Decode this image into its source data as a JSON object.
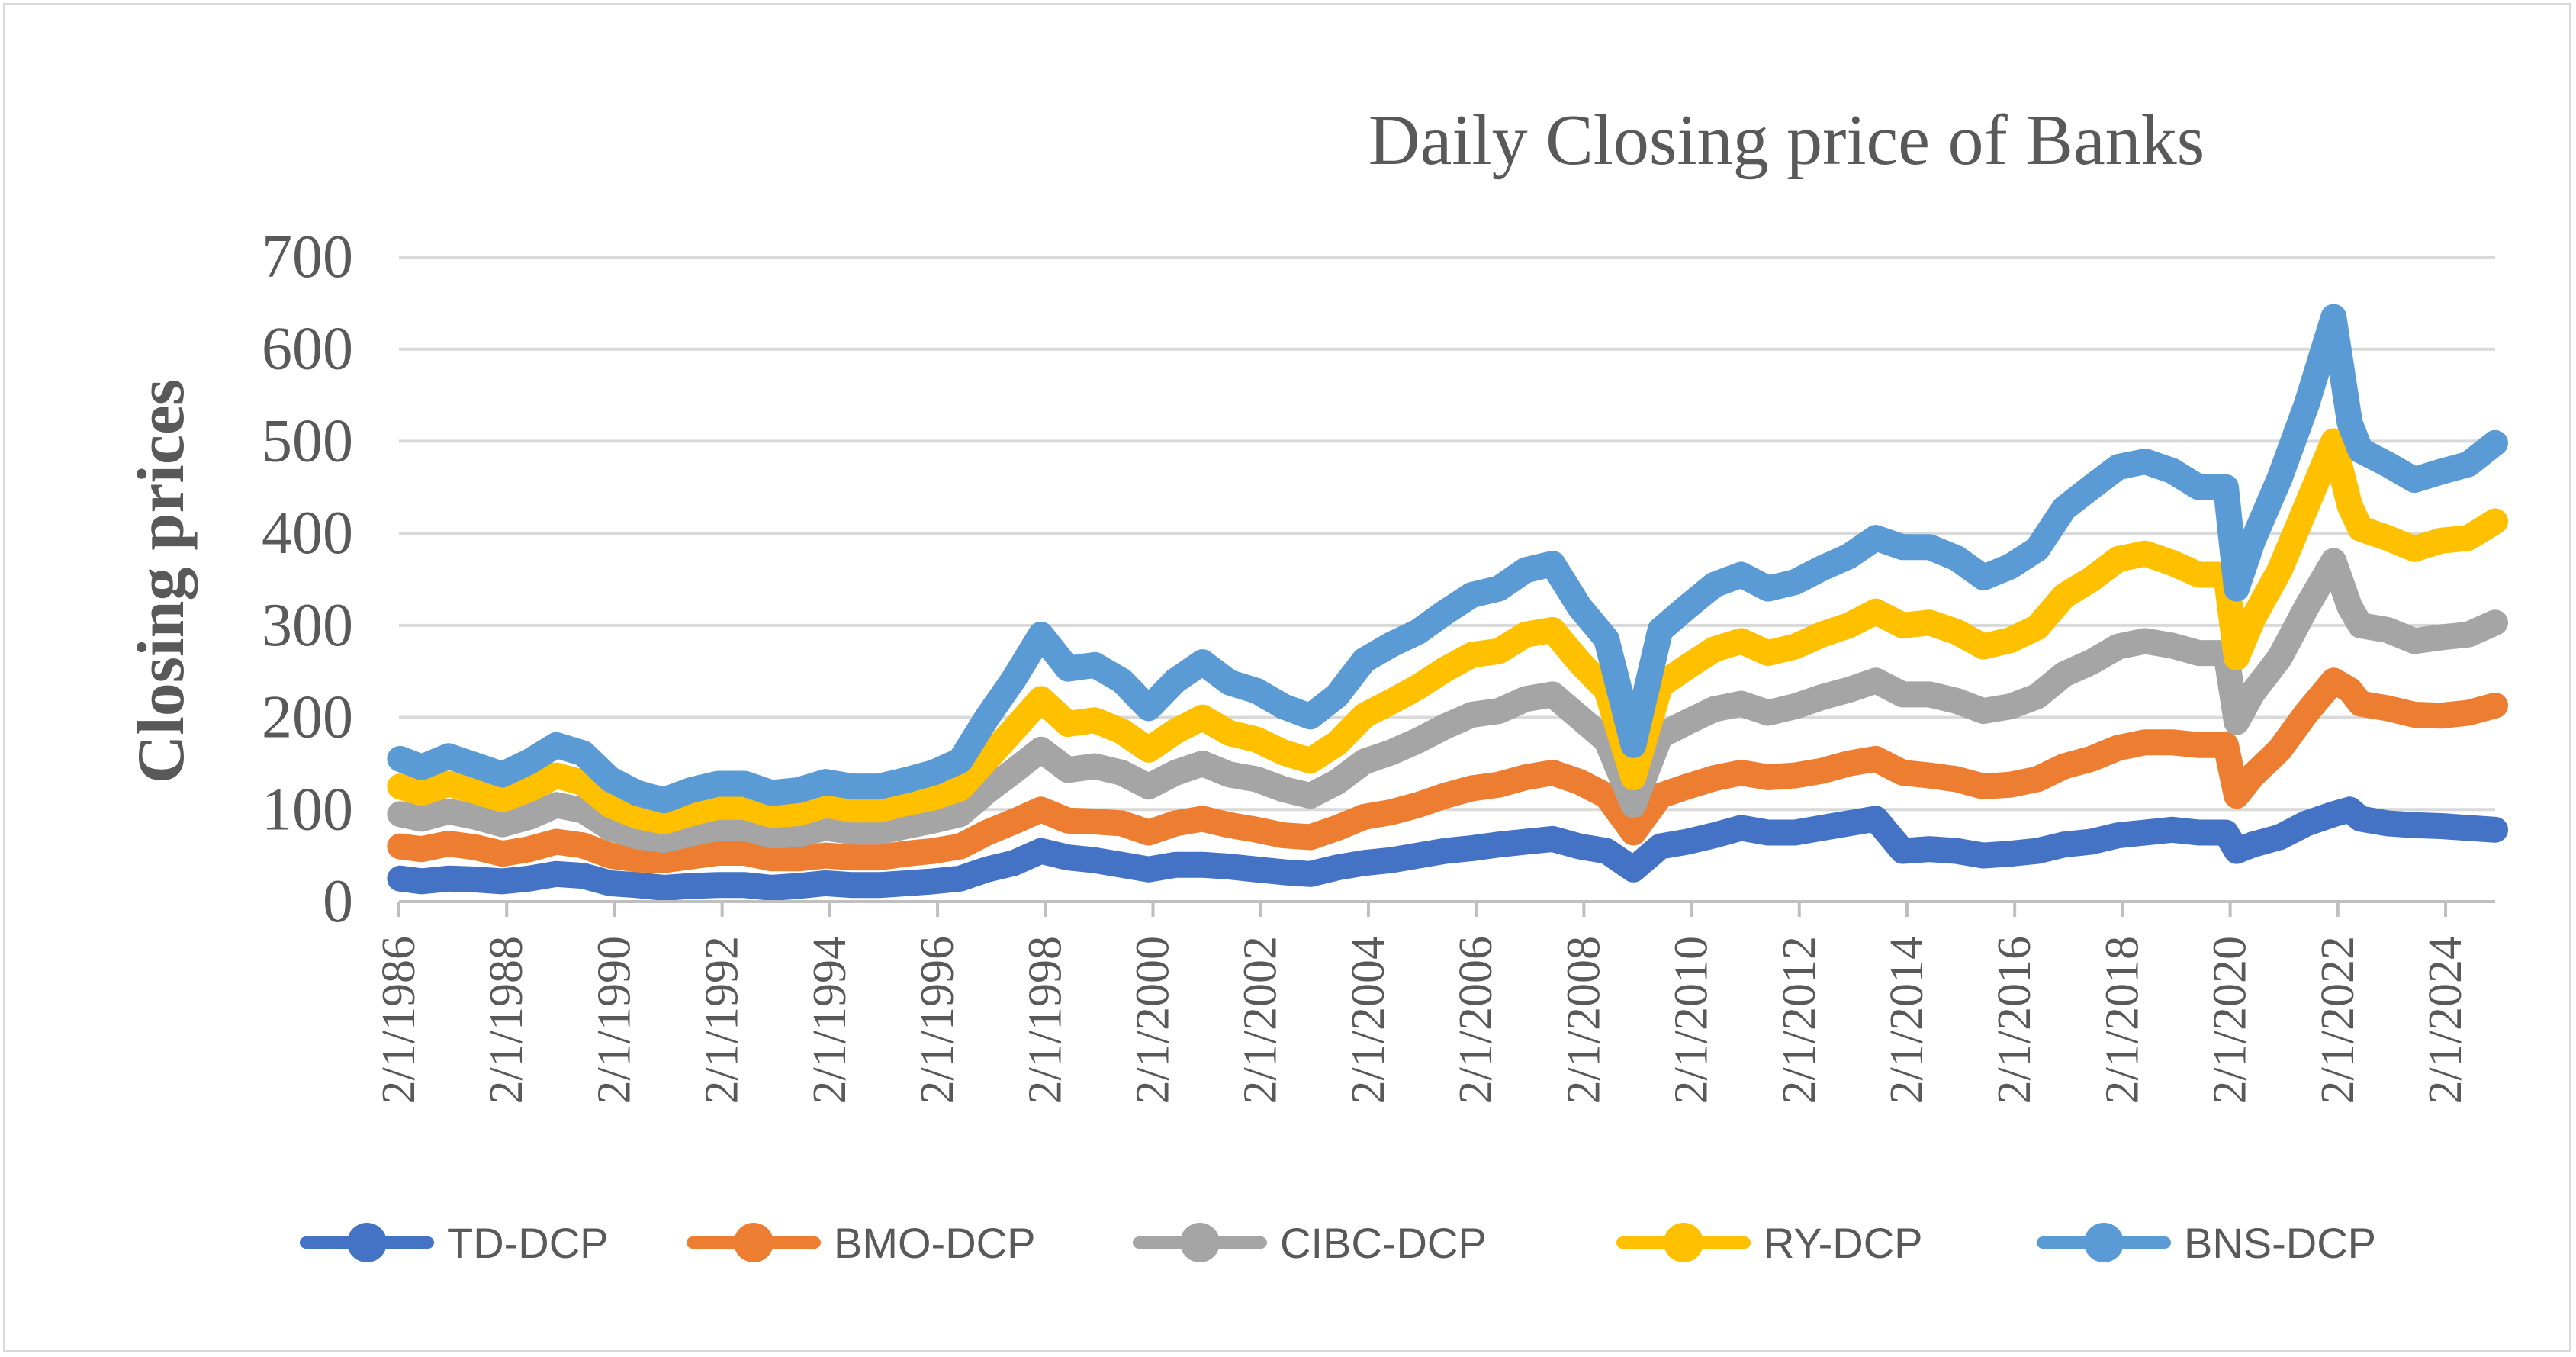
{
  "chart_data": {
    "type": "line",
    "title": "Daily Closing price of Banks",
    "xlabel": "",
    "ylabel": "Closing prices",
    "ylim": [
      0,
      700
    ],
    "xlim": [
      1986.08,
      2025.0
    ],
    "yticks": [
      0,
      100,
      200,
      300,
      400,
      500,
      600,
      700
    ],
    "y_tick_labels": [
      "0",
      "100",
      "200",
      "300",
      "400",
      "500",
      "600",
      "700"
    ],
    "xticks": [
      1986,
      1988,
      1990,
      1992,
      1994,
      1996,
      1998,
      2000,
      2002,
      2004,
      2006,
      2008,
      2010,
      2012,
      2014,
      2016,
      2018,
      2020,
      2022,
      2024
    ],
    "x_tick_labels": [
      "2/1/1986",
      "2/1/1988",
      "2/1/1990",
      "2/1/1992",
      "2/1/1994",
      "2/1/1996",
      "2/1/1998",
      "2/1/2000",
      "2/1/2002",
      "2/1/2004",
      "2/1/2006",
      "2/1/2008",
      "2/1/2010",
      "2/1/2012",
      "2/1/2014",
      "2/1/2016",
      "2/1/2018",
      "2/1/2020",
      "2/1/2022",
      "2/1/2024"
    ],
    "grid": true,
    "legend_position": "bottom",
    "stacked": true,
    "x": [
      1986.1,
      1986.5,
      1987.0,
      1987.5,
      1988.0,
      1988.5,
      1989.0,
      1989.5,
      1990.0,
      1990.5,
      1991.0,
      1991.5,
      1992.0,
      1992.5,
      1993.0,
      1993.5,
      1994.0,
      1994.5,
      1995.0,
      1995.5,
      1996.0,
      1996.5,
      1997.0,
      1997.5,
      1998.0,
      1998.5,
      1999.0,
      1999.5,
      2000.0,
      2000.5,
      2001.0,
      2001.5,
      2002.0,
      2002.5,
      2003.0,
      2003.5,
      2004.0,
      2004.5,
      2005.0,
      2005.5,
      2006.0,
      2006.5,
      2007.0,
      2007.5,
      2008.0,
      2008.5,
      2009.0,
      2009.5,
      2010.0,
      2010.5,
      2011.0,
      2011.5,
      2012.0,
      2012.5,
      2013.0,
      2013.5,
      2014.0,
      2014.5,
      2015.0,
      2015.5,
      2016.0,
      2016.5,
      2017.0,
      2017.5,
      2018.0,
      2018.5,
      2019.0,
      2019.5,
      2020.0,
      2020.2,
      2020.5,
      2021.0,
      2021.5,
      2022.0,
      2022.3,
      2022.5,
      2023.0,
      2023.5,
      2024.0,
      2024.5,
      2025.0
    ],
    "series": [
      {
        "name": "TD-DCP",
        "color": "#4472c4",
        "values": [
          25,
          22,
          25,
          24,
          22,
          25,
          30,
          28,
          20,
          18,
          15,
          17,
          18,
          18,
          15,
          17,
          20,
          18,
          18,
          20,
          22,
          25,
          35,
          42,
          55,
          48,
          45,
          40,
          35,
          40,
          40,
          38,
          35,
          32,
          30,
          37,
          42,
          45,
          50,
          55,
          58,
          62,
          65,
          68,
          60,
          55,
          35,
          60,
          65,
          72,
          80,
          75,
          75,
          80,
          85,
          90,
          55,
          57,
          55,
          50,
          52,
          55,
          62,
          65,
          72,
          75,
          78,
          75,
          75,
          55,
          62,
          70,
          85,
          95,
          100,
          90,
          85,
          83,
          82,
          80,
          78
        ]
      },
      {
        "name": "BMO-DCP",
        "color": "#ed7d31",
        "values": [
          35,
          35,
          38,
          35,
          30,
          32,
          35,
          33,
          30,
          28,
          30,
          32,
          35,
          35,
          32,
          30,
          30,
          30,
          30,
          32,
          33,
          35,
          40,
          45,
          45,
          40,
          42,
          45,
          40,
          45,
          50,
          45,
          43,
          40,
          40,
          43,
          50,
          52,
          55,
          60,
          65,
          65,
          70,
          72,
          70,
          60,
          40,
          55,
          60,
          62,
          60,
          60,
          62,
          62,
          65,
          65,
          85,
          80,
          78,
          75,
          75,
          78,
          85,
          90,
          95,
          98,
          95,
          95,
          95,
          60,
          75,
          95,
          120,
          145,
          130,
          125,
          125,
          120,
          120,
          125,
          135
        ]
      },
      {
        "name": "CIBC-DCP",
        "color": "#a5a5a5",
        "values": [
          35,
          33,
          35,
          33,
          32,
          35,
          40,
          38,
          30,
          25,
          22,
          25,
          27,
          27,
          25,
          26,
          30,
          28,
          28,
          30,
          33,
          35,
          45,
          55,
          65,
          55,
          60,
          55,
          50,
          55,
          60,
          55,
          55,
          50,
          45,
          50,
          60,
          65,
          70,
          75,
          80,
          80,
          85,
          85,
          70,
          60,
          30,
          65,
          70,
          75,
          75,
          70,
          75,
          80,
          80,
          85,
          85,
          88,
          85,
          82,
          85,
          90,
          100,
          105,
          110,
          110,
          105,
          100,
          100,
          80,
          90,
          100,
          115,
          130,
          90,
          85,
          85,
          80,
          85,
          85,
          90
        ]
      },
      {
        "name": "RY-DCP",
        "color": "#ffc000",
        "values": [
          30,
          28,
          30,
          28,
          27,
          30,
          32,
          30,
          25,
          22,
          20,
          22,
          23,
          23,
          22,
          23,
          25,
          24,
          24,
          25,
          25,
          28,
          35,
          45,
          55,
          50,
          50,
          45,
          40,
          45,
          50,
          45,
          43,
          40,
          38,
          42,
          50,
          55,
          58,
          62,
          65,
          65,
          70,
          70,
          60,
          55,
          30,
          55,
          60,
          65,
          68,
          65,
          65,
          68,
          70,
          75,
          75,
          78,
          75,
          70,
          72,
          75,
          85,
          90,
          95,
          95,
          90,
          85,
          85,
          70,
          80,
          95,
          110,
          130,
          110,
          105,
          100,
          100,
          105,
          105,
          110
        ]
      },
      {
        "name": "BNS-DCP",
        "color": "#5b9bd5",
        "values": [
          30,
          28,
          30,
          28,
          27,
          30,
          33,
          32,
          28,
          25,
          23,
          25,
          25,
          25,
          24,
          25,
          25,
          25,
          25,
          25,
          27,
          30,
          45,
          55,
          70,
          60,
          60,
          55,
          45,
          55,
          60,
          55,
          53,
          50,
          48,
          52,
          60,
          62,
          60,
          62,
          65,
          68,
          70,
          72,
          60,
          55,
          35,
          60,
          65,
          70,
          72,
          70,
          70,
          72,
          75,
          80,
          85,
          82,
          80,
          75,
          80,
          85,
          95,
          100,
          100,
          100,
          100,
          95,
          95,
          75,
          85,
          100,
          110,
          135,
          90,
          85,
          80,
          75,
          75,
          80,
          85
        ]
      }
    ]
  }
}
